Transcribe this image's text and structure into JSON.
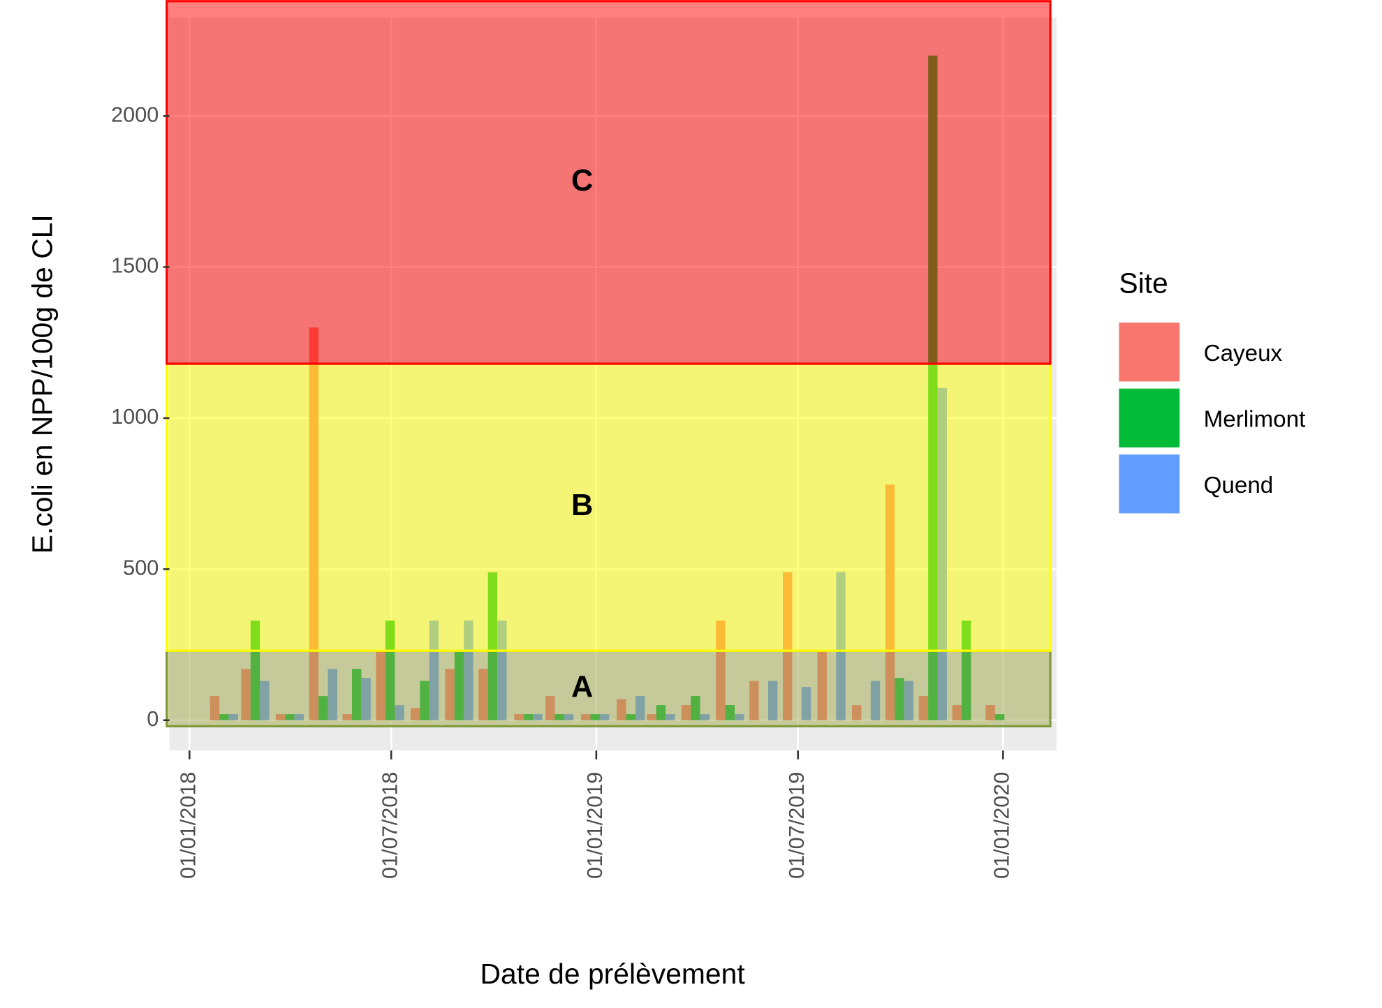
{
  "chart_data": {
    "type": "bar",
    "x_title": "Date de prélèvement",
    "y_title": "E.coli en NPP/100g de CLI",
    "legend_title": "Site",
    "legend_position": "right",
    "grid": true,
    "x": [
      "2018-02-01",
      "2018-03-01",
      "2018-04-01",
      "2018-05-01",
      "2018-05-31",
      "2018-06-30",
      "2018-07-31",
      "2018-08-31",
      "2018-09-30",
      "2018-11-01",
      "2018-11-29",
      "2018-12-31",
      "2019-02-01",
      "2019-02-28",
      "2019-03-31",
      "2019-05-01",
      "2019-05-31",
      "2019-06-30",
      "2019-07-31",
      "2019-08-31",
      "2019-09-30",
      "2019-10-30",
      "2019-11-29",
      "2019-12-29"
    ],
    "series": [
      {
        "name": "Cayeux",
        "color": "#F8766D",
        "values": [
          80,
          170,
          20,
          1300,
          20,
          230,
          40,
          170,
          170,
          20,
          80,
          20,
          70,
          20,
          50,
          330,
          130,
          490,
          230,
          50,
          780,
          80,
          50,
          50
        ]
      },
      {
        "name": "Merlimont",
        "color": "#00BA38",
        "values": [
          20,
          330,
          20,
          80,
          170,
          330,
          130,
          230,
          490,
          20,
          20,
          20,
          20,
          50,
          80,
          50,
          null,
          null,
          null,
          null,
          140,
          2200,
          330,
          20
        ]
      },
      {
        "name": "Quend",
        "color": "#619CFF",
        "values": [
          20,
          130,
          20,
          170,
          140,
          50,
          330,
          330,
          330,
          20,
          20,
          20,
          80,
          20,
          20,
          20,
          130,
          110,
          490,
          130,
          130,
          1100,
          null,
          null
        ]
      }
    ],
    "zones": [
      {
        "label": "A",
        "ymin": -20,
        "ymax": 230,
        "color": "#a1a749",
        "edge": "#7f9a3a"
      },
      {
        "label": "B",
        "ymin": 230,
        "ymax": 1180,
        "color": "#ffff00",
        "edge": "#ffff00"
      },
      {
        "label": "C",
        "ymin": 1180,
        "ymax": 2380,
        "color": "#ff0000",
        "edge": "#ff0000"
      }
    ],
    "xlim": [
      "2017-12-14",
      "2020-02-18"
    ],
    "xticks": [
      {
        "value": "2018-01-01",
        "label": "01/01/2018"
      },
      {
        "value": "2018-07-01",
        "label": "01/07/2018"
      },
      {
        "value": "2019-01-01",
        "label": "01/01/2019"
      },
      {
        "value": "2019-07-01",
        "label": "01/07/2019"
      },
      {
        "value": "2020-01-01",
        "label": "01/01/2020"
      }
    ],
    "ylim": [
      -100,
      2325
    ],
    "yticks": [
      0,
      500,
      1000,
      1500,
      2000
    ]
  }
}
